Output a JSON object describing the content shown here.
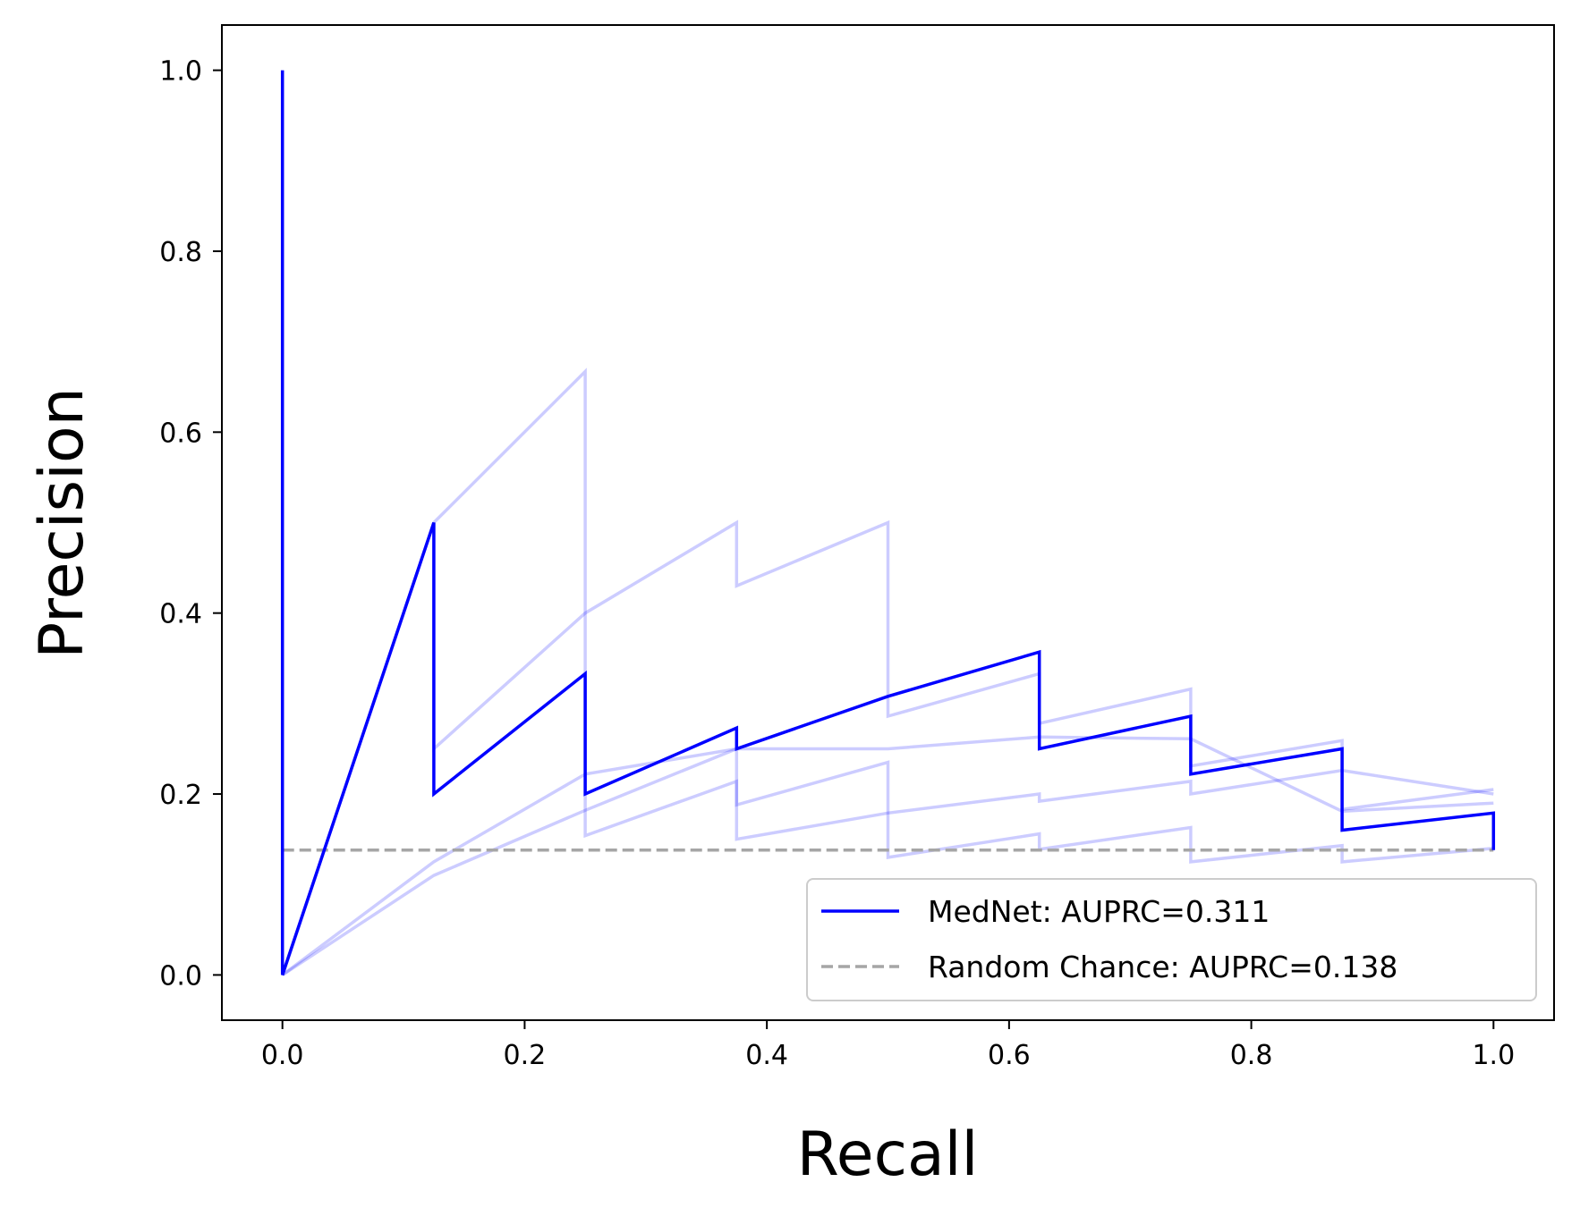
{
  "chart_data": {
    "type": "line",
    "xlabel": "Recall",
    "ylabel": "Precision",
    "xlim": [
      -0.05,
      1.05
    ],
    "ylim": [
      -0.05,
      1.05
    ],
    "xticks": [
      0.0,
      0.2,
      0.4,
      0.6,
      0.8,
      1.0
    ],
    "yticks": [
      0.0,
      0.2,
      0.4,
      0.6,
      0.8,
      1.0
    ],
    "xtick_labels": [
      "0.0",
      "0.2",
      "0.4",
      "0.6",
      "0.8",
      "1.0"
    ],
    "ytick_labels": [
      "0.0",
      "0.2",
      "0.4",
      "0.6",
      "0.8",
      "1.0"
    ],
    "grid": false,
    "legend_position": "bottom-right",
    "series": [
      {
        "name": "MedNet: AUPRC=0.311",
        "role": "main",
        "color": "#0000ff",
        "x": [
          0.0,
          0.0,
          0.125,
          0.125,
          0.25,
          0.25,
          0.375,
          0.375,
          0.5,
          0.625,
          0.625,
          0.75,
          0.75,
          0.875,
          0.875,
          1.0,
          1.0
        ],
        "y": [
          1.0,
          0.0,
          0.5,
          0.2,
          0.333,
          0.2,
          0.273,
          0.25,
          0.308,
          0.357,
          0.25,
          0.286,
          0.222,
          0.25,
          0.16,
          0.179,
          0.138
        ]
      },
      {
        "role": "fold",
        "color": "#0000ff",
        "x": [
          0.0,
          0.125,
          0.125,
          0.25,
          0.25,
          0.375,
          0.375,
          0.5,
          0.5,
          0.625,
          0.625,
          0.75,
          0.75,
          0.875,
          0.875,
          1.0
        ],
        "y": [
          0.0,
          0.5,
          0.25,
          0.4,
          0.4,
          0.5,
          0.43,
          0.5,
          0.286,
          0.333,
          0.278,
          0.316,
          0.231,
          0.259,
          0.183,
          0.205
        ]
      },
      {
        "role": "fold",
        "color": "#0000ff",
        "x": [
          0.0,
          0.125,
          0.125,
          0.25,
          0.25,
          0.375,
          0.375,
          0.5,
          0.5,
          0.625,
          0.625,
          0.75,
          0.75,
          0.875,
          0.875,
          1.0
        ],
        "y": [
          0.0,
          0.5,
          0.5,
          0.667,
          0.154,
          0.214,
          0.15,
          0.179,
          0.179,
          0.2,
          0.192,
          0.214,
          0.2,
          0.226,
          0.226,
          0.2
        ]
      },
      {
        "role": "fold",
        "color": "#0000ff",
        "x": [
          0.0,
          0.125,
          0.125,
          0.25,
          0.25,
          0.375,
          0.375,
          0.5,
          0.5,
          0.625,
          0.625,
          0.75,
          0.75,
          0.875,
          0.875,
          1.0
        ],
        "y": [
          0.0,
          0.11,
          0.11,
          0.182,
          0.182,
          0.25,
          0.188,
          0.235,
          0.13,
          0.156,
          0.139,
          0.163,
          0.125,
          0.143,
          0.125,
          0.14
        ]
      },
      {
        "role": "fold",
        "color": "#0000ff",
        "x": [
          0.0,
          0.125,
          0.25,
          0.375,
          0.5,
          0.625,
          0.625,
          0.75,
          0.75,
          0.875,
          1.0
        ],
        "y": [
          0.0,
          0.125,
          0.222,
          0.25,
          0.25,
          0.263,
          0.263,
          0.261,
          0.261,
          0.181,
          0.19
        ]
      },
      {
        "name": "Random Chance: AUPRC=0.138",
        "role": "baseline",
        "color": "#a6a6a6",
        "dashed": true,
        "x": [
          0.0,
          1.0
        ],
        "y": [
          0.138,
          0.138
        ]
      }
    ]
  }
}
